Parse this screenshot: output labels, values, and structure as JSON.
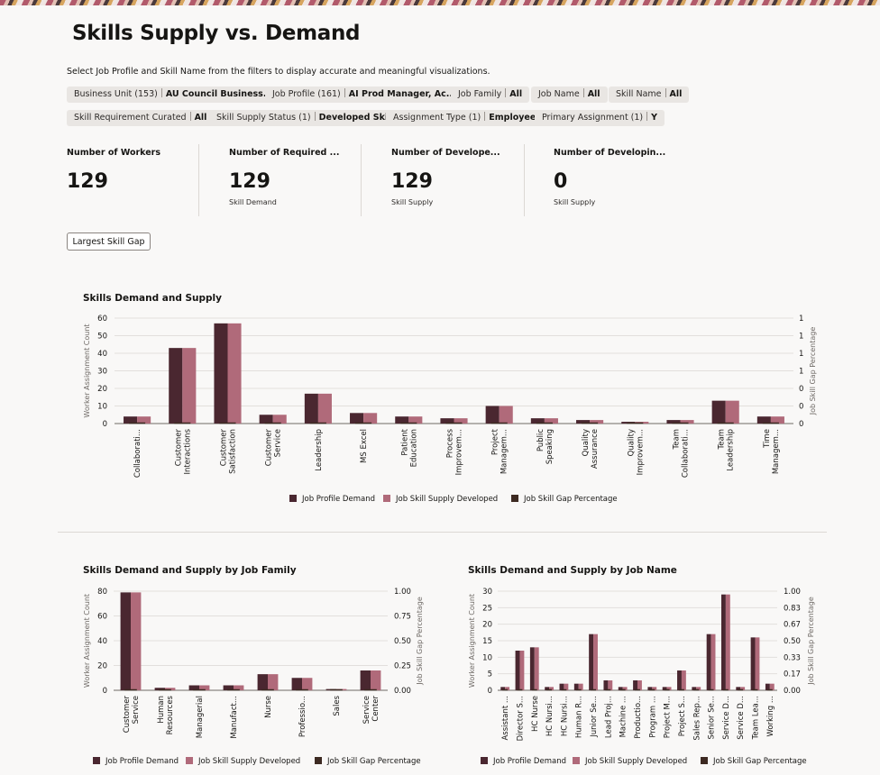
{
  "page": {
    "title": "Skills Supply vs. Demand",
    "subtitle": "Select Job Profile and Skill Name from the filters to display accurate and meaningful visualizations."
  },
  "filters": [
    {
      "label": "Business Unit (153)",
      "value": "AU Council Business..."
    },
    {
      "label": "Job Profile (161)",
      "value": "AI Prod Manager, Ac..."
    },
    {
      "label": "Job Family",
      "value": "All"
    },
    {
      "label": "Job Name",
      "value": "All"
    },
    {
      "label": "Skill Name",
      "value": "All"
    },
    {
      "label": "Skill Requirement Curated",
      "value": "All"
    },
    {
      "label": "Skill Supply Status (1)",
      "value": "Developed Skill"
    },
    {
      "label": "Assignment Type (1)",
      "value": "Employee"
    },
    {
      "label": "Primary Assignment (1)",
      "value": "Y"
    }
  ],
  "kpis": [
    {
      "title": "Number of Workers",
      "value": "129",
      "sub": ""
    },
    {
      "title": "Number of Required ...",
      "value": "129",
      "sub": "Skill Demand"
    },
    {
      "title": "Number of Develope...",
      "value": "129",
      "sub": "Skill Supply"
    },
    {
      "title": "Number of Developin...",
      "value": "0",
      "sub": "Skill Supply"
    }
  ],
  "actions": {
    "largest_gap": "Largest Skill Gap"
  },
  "colors": {
    "demand": "#4a2730",
    "supply": "#b06a7a",
    "gap": "#3d2a22"
  },
  "chart_data": [
    {
      "type": "bar",
      "title": "Skills Demand and Supply",
      "ylabel": "Worker Assignment Count",
      "y2label": "Job Skill Gap Percentage",
      "ylim": [
        0,
        60
      ],
      "yticks": [
        "0",
        "10",
        "20",
        "30",
        "40",
        "50",
        "60"
      ],
      "y2ticks": [
        "0",
        "0",
        "0",
        "1",
        "1",
        "1",
        "1"
      ],
      "categories": [
        [
          "Collaborati..."
        ],
        [
          "Customer",
          "Interactions"
        ],
        [
          "Customer",
          "Satisfaction"
        ],
        [
          "Customer",
          "Service"
        ],
        [
          "Leadership"
        ],
        [
          "MS Excel"
        ],
        [
          "Patient",
          "Education"
        ],
        [
          "Process",
          "Improvem..."
        ],
        [
          "Project",
          "Managem..."
        ],
        [
          "Public",
          "Speaking"
        ],
        [
          "Quality",
          "Assurance"
        ],
        [
          "Quality",
          "Improvem..."
        ],
        [
          "Team",
          "Collaborati..."
        ],
        [
          "Team",
          "Leadership"
        ],
        [
          "Time",
          "Managem..."
        ]
      ],
      "series": [
        {
          "name": "Job Profile Demand",
          "values": [
            4,
            43,
            57,
            5,
            17,
            6,
            4,
            3,
            10,
            3,
            2,
            1,
            2,
            13,
            4
          ]
        },
        {
          "name": "Job Skill Supply Developed",
          "values": [
            4,
            43,
            57,
            5,
            17,
            6,
            4,
            3,
            10,
            3,
            2,
            1,
            2,
            13,
            4
          ]
        },
        {
          "name": "Job Skill Gap Percentage",
          "values": [
            0,
            0,
            0,
            0,
            0,
            0,
            0,
            0,
            0,
            0,
            0,
            0,
            0,
            0,
            0
          ]
        }
      ],
      "legend": "bottom"
    },
    {
      "type": "bar",
      "title": "Skills Demand and Supply by Job Family",
      "ylabel": "Worker Assignment Count",
      "y2label": "Job Skill Gap Percentage",
      "ylim": [
        0,
        80
      ],
      "yticks": [
        "0",
        "20",
        "40",
        "60",
        "80"
      ],
      "y2ticks": [
        "0.00",
        "0.25",
        "0.50",
        "0.75",
        "1.00"
      ],
      "categories": [
        [
          "Customer",
          "Service"
        ],
        [
          "Human",
          "Resources"
        ],
        [
          "Managerial"
        ],
        [
          "Manufact..."
        ],
        [
          "Nurse"
        ],
        [
          "Professio..."
        ],
        [
          "Sales"
        ],
        [
          "Service",
          "Center"
        ]
      ],
      "series": [
        {
          "name": "Job Profile Demand",
          "values": [
            79,
            2,
            4,
            4,
            13,
            10,
            1,
            16
          ]
        },
        {
          "name": "Job Skill Supply Developed",
          "values": [
            79,
            2,
            4,
            4,
            13,
            10,
            1,
            16
          ]
        },
        {
          "name": "Job Skill Gap Percentage",
          "values": [
            0,
            0,
            0,
            0,
            0,
            0,
            0,
            0
          ]
        }
      ],
      "legend": "bottom"
    },
    {
      "type": "bar",
      "title": "Skills Demand and Supply by Job Name",
      "ylabel": "Worker Assignment Count",
      "y2label": "Job Skill Gap Percentage",
      "ylim": [
        0,
        30
      ],
      "yticks": [
        "0",
        "5",
        "10",
        "15",
        "20",
        "25",
        "30"
      ],
      "y2ticks": [
        "0.00",
        "0.17",
        "0.33",
        "0.50",
        "0.67",
        "0.83",
        "1.00"
      ],
      "categories": [
        [
          "Assistant ..."
        ],
        [
          "Director S..."
        ],
        [
          "HC Nurse"
        ],
        [
          "HC Nursi..."
        ],
        [
          "HC Nursi..."
        ],
        [
          "Human R..."
        ],
        [
          "Junior Se..."
        ],
        [
          "Lead Proj..."
        ],
        [
          "Machine ..."
        ],
        [
          "Productio..."
        ],
        [
          "Program ..."
        ],
        [
          "Project M..."
        ],
        [
          "Project S..."
        ],
        [
          "Sales Rep..."
        ],
        [
          "Senior Se..."
        ],
        [
          "Service D..."
        ],
        [
          "Service D..."
        ],
        [
          "Team Lea..."
        ],
        [
          "Working ..."
        ]
      ],
      "series": [
        {
          "name": "Job Profile Demand",
          "values": [
            1,
            12,
            13,
            1,
            2,
            2,
            17,
            3,
            1,
            3,
            1,
            1,
            6,
            1,
            17,
            29,
            1,
            16,
            2
          ]
        },
        {
          "name": "Job Skill Supply Developed",
          "values": [
            1,
            12,
            13,
            1,
            2,
            2,
            17,
            3,
            1,
            3,
            1,
            1,
            6,
            1,
            17,
            29,
            1,
            16,
            2
          ]
        },
        {
          "name": "Job Skill Gap Percentage",
          "values": [
            0,
            0,
            0,
            0,
            0,
            0,
            0,
            0,
            0,
            0,
            0,
            0,
            0,
            0,
            0,
            0,
            0,
            0,
            0
          ]
        }
      ],
      "legend": "bottom"
    }
  ]
}
